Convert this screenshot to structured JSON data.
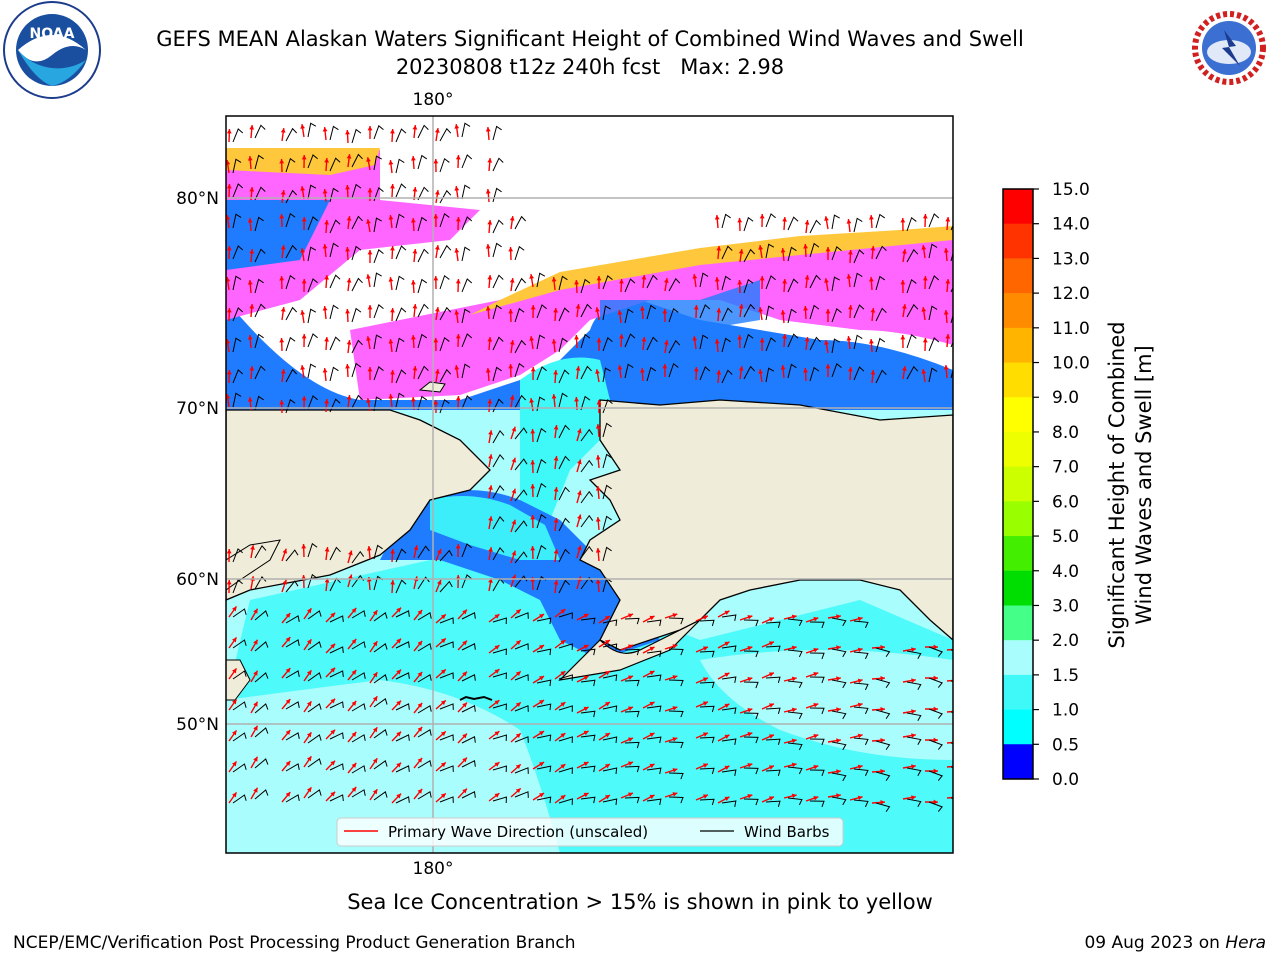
{
  "header": {
    "title": "GEFS MEAN Alaskan Waters Significant Height of Combined Wind Waves and Swell",
    "subtitle": "20230808 t12z 240h fcst   Max: 2.98"
  },
  "logos": {
    "left": {
      "name": "noaa-logo",
      "text": "NOAA"
    },
    "right": {
      "name": "nws-logo"
    }
  },
  "map": {
    "lon_top_label": "180°",
    "lon_bottom_label": "180°",
    "lat_labels": [
      "80°N",
      "70°N",
      "60°N",
      "50°N"
    ],
    "legend": {
      "wave_direction": "Primary Wave Direction (unscaled)",
      "wind_barbs": "Wind Barbs"
    },
    "colors": {
      "land": "#efedd9",
      "ocean_low": "#aafdfd",
      "ocean_mid": "#3ff9f9",
      "ocean_coastal": "#1f7cff",
      "ice_pink": "#ff66ff",
      "ice_yellow": "#ffc83c",
      "arrow": "#ff0000"
    }
  },
  "colorbar": {
    "label_line1": "Significant Height of Combined",
    "label_line2": "Wind Waves and Swell [m]",
    "ticks": [
      "15.0",
      "14.0",
      "13.0",
      "12.0",
      "11.0",
      "10.0",
      "9.0",
      "8.0",
      "7.0",
      "6.0",
      "5.0",
      "4.0",
      "3.0",
      "2.0",
      "1.5",
      "1.0",
      "0.5",
      "0.0"
    ],
    "colors": [
      "#ff0000",
      "#ff3300",
      "#ff6600",
      "#ff8c00",
      "#ffb400",
      "#ffdd00",
      "#ffff00",
      "#eeff00",
      "#ccff00",
      "#99ff00",
      "#44ee00",
      "#00dd00",
      "#44ff88",
      "#aafdfd",
      "#3ff9f9",
      "#00ffff",
      "#1f7cff",
      "#0000ff"
    ]
  },
  "footer": {
    "note": "Sea Ice Concentration > 15% is shown in pink to yellow",
    "left": "NCEP/EMC/Verification Post Processing Product Generation Branch",
    "right_prefix": "09 Aug 2023 on ",
    "right_host": "Hera"
  }
}
